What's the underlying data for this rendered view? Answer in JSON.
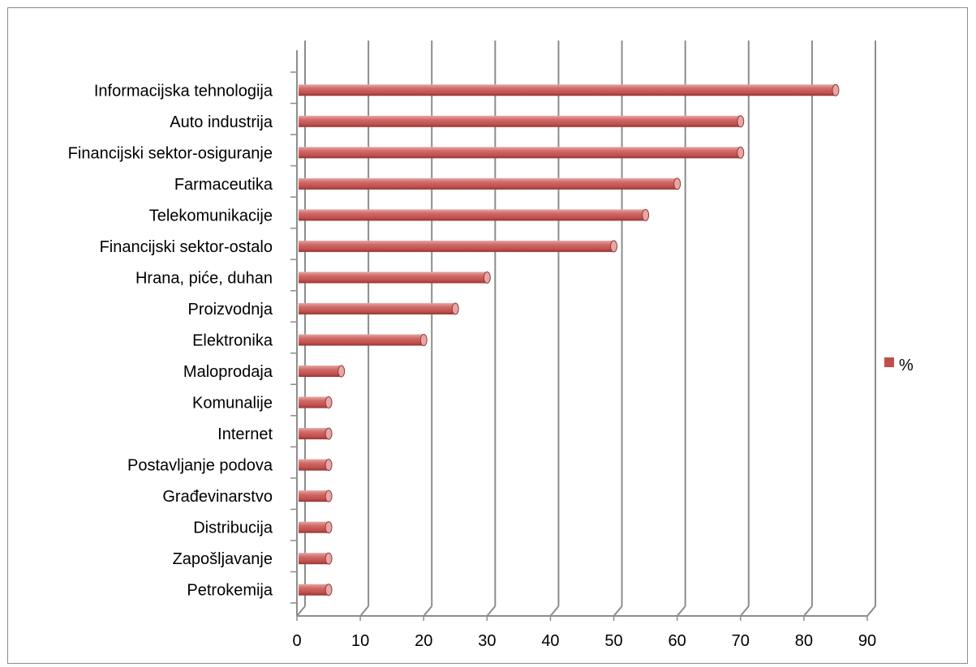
{
  "colors": {
    "bar": "#c0504d",
    "bar_dark": "#943634",
    "bar_light": "#e6a7a5",
    "grid": "#8c8c8c"
  },
  "chart_data": {
    "type": "bar",
    "orientation": "horizontal",
    "categories": [
      "Informacijska tehnologija",
      "Auto industrija",
      "Financijski sektor-osiguranje",
      "Farmaceutika",
      "Telekomunikacije",
      "Financijski sektor-ostalo",
      "Hrana, piće, duhan",
      "Proizvodnja",
      "Elektronika",
      "Maloprodaja",
      "Komunalije",
      "Internet",
      "Postavljanje podova",
      "Građevinarstvo",
      "Distribucija",
      "Zapošljavanje",
      "Petrokemija"
    ],
    "series": [
      {
        "name": "%",
        "values": [
          85,
          70,
          70,
          60,
          55,
          50,
          30,
          25,
          20,
          7,
          5,
          5,
          5,
          5,
          5,
          5,
          5
        ]
      }
    ],
    "xlim": [
      0,
      90
    ],
    "xticks": [
      "0",
      "10",
      "20",
      "30",
      "40",
      "50",
      "60",
      "70",
      "80",
      "90"
    ],
    "grid": "vertical",
    "legend_position": "right"
  }
}
